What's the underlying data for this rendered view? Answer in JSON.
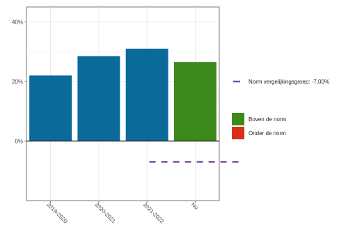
{
  "chart_data": {
    "type": "bar",
    "title": "",
    "xlabel": "",
    "ylabel": "",
    "categories": [
      "2019-2020",
      "2020-2021",
      "2021-2022",
      "Nu"
    ],
    "values": [
      22,
      28.5,
      31,
      26.5
    ],
    "bar_colors": [
      "#0a6a9a",
      "#0a6a9a",
      "#0a6a9a",
      "#3c8a1c"
    ],
    "ylim": [
      -20,
      45
    ],
    "yticks": [
      0,
      20,
      40
    ],
    "ytick_labels": [
      "0%",
      "20%",
      "40%"
    ],
    "norm": {
      "value": -7,
      "category_index": 3,
      "color": "#7a4fa0",
      "label": "Norm vergelijkingsgroep: -7,00%"
    },
    "grid": true,
    "legend_position": "right",
    "legend": [
      {
        "label": "Boven de norm",
        "color": "#3c8a1c"
      },
      {
        "label": "Onder de norm",
        "color": "#d9301a"
      }
    ]
  }
}
